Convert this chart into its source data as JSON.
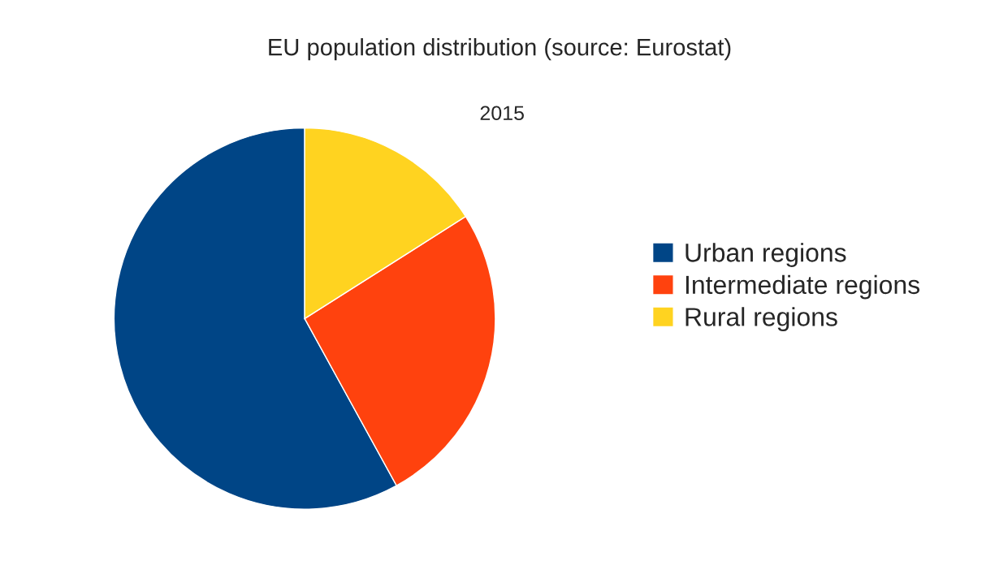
{
  "chart_data": {
    "type": "pie",
    "title": "EU population distribution (source: Eurostat)",
    "categories": [
      "Urban regions",
      "Intermediate regions",
      "Rural regions"
    ],
    "values": [
      58,
      26,
      16
    ],
    "colors": [
      "#004586",
      "#ff420e",
      "#ffd320"
    ],
    "annotations": [
      "2015"
    ],
    "legend": "right"
  }
}
